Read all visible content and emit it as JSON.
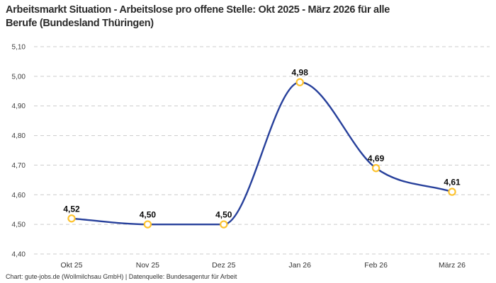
{
  "title": {
    "line1": "Arbeitsmarkt Situation - Arbeitslose pro offene Stelle: Okt 2025 - März 2026 für alle",
    "line2": "Berufe (Bundesland Thüringen)"
  },
  "footer": "Chart: gute-jobs.de (Wollmilchsau GmbH) | Datenquelle: Bundesagentur für Arbeit",
  "colors": {
    "line": "#27409b",
    "marker_stroke": "#fdc32f",
    "marker_fill": "#ffffff",
    "grid": "#cccccc",
    "background": "#ffffff"
  },
  "chart_data": {
    "type": "line",
    "title": "Arbeitsmarkt Situation - Arbeitslose pro offene Stelle: Okt 2025 - März 2026 für alle Berufe (Bundesland Thüringen)",
    "categories": [
      "Okt 25",
      "Nov 25",
      "Dez 25",
      "Jan 26",
      "Feb 26",
      "März 26"
    ],
    "values": [
      4.52,
      4.5,
      4.5,
      4.98,
      4.69,
      4.61
    ],
    "value_labels": [
      "4,52",
      "4,50",
      "4,50",
      "4,98",
      "4,69",
      "4,61"
    ],
    "y_ticks": [
      "5,10",
      "5,00",
      "4,90",
      "4,80",
      "4,70",
      "4,60",
      "4,50",
      "4,40"
    ],
    "y_tick_values": [
      5.1,
      5.0,
      4.9,
      4.8,
      4.7,
      4.6,
      4.5,
      4.4
    ],
    "ylim": [
      4.4,
      5.1
    ],
    "xlabel": "",
    "ylabel": "",
    "grid": "horizontal-dashed",
    "legend": "none",
    "curve": "smooth-monotone",
    "source": "Bundesagentur für Arbeit"
  }
}
